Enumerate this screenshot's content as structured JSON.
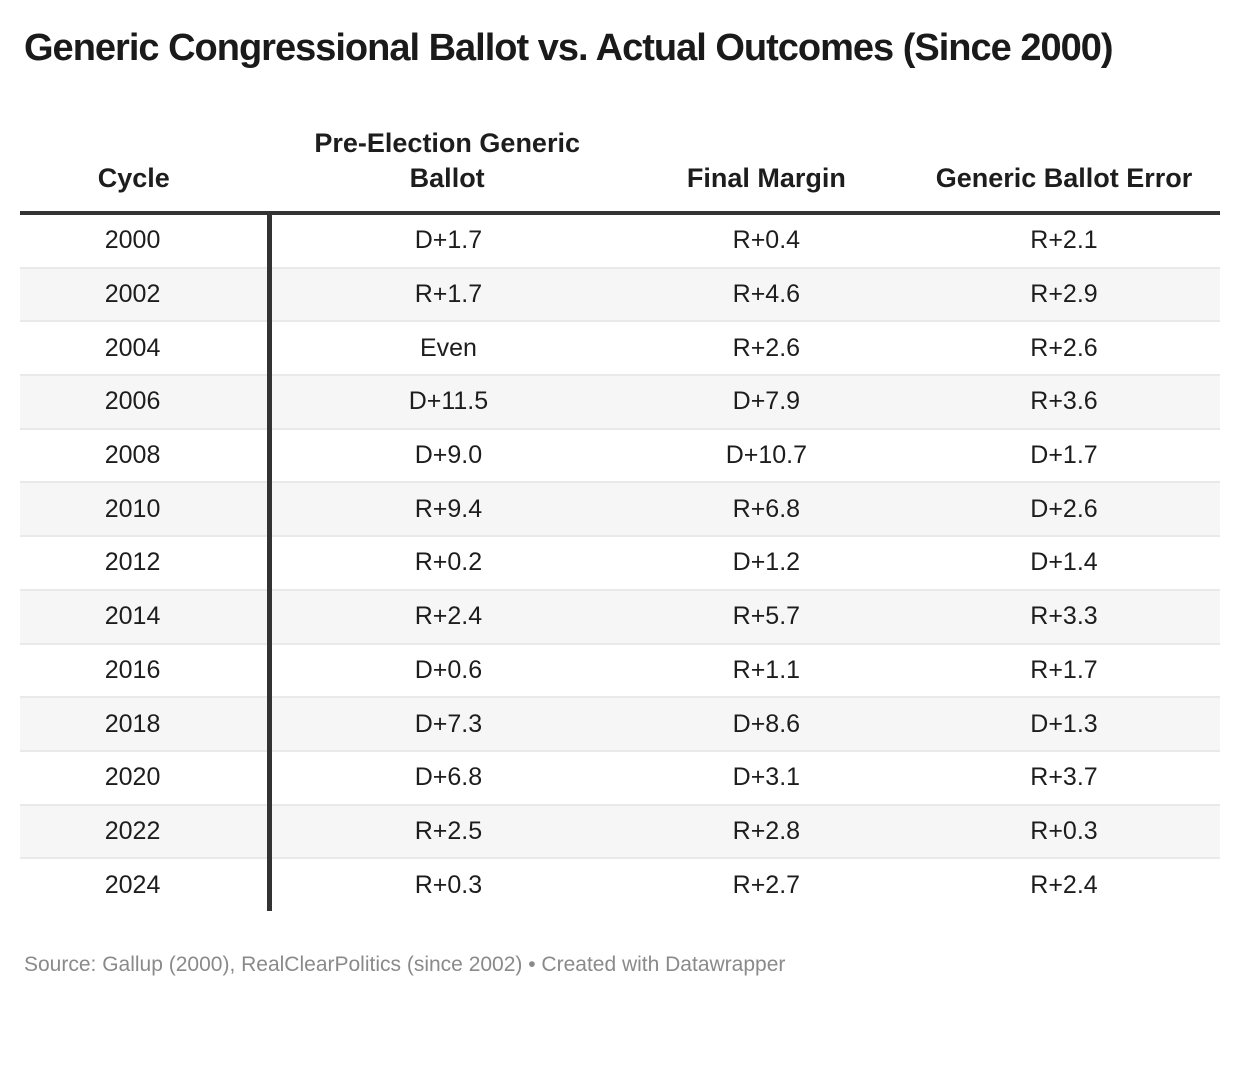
{
  "title": "Generic Congressional Ballot vs. Actual Outcomes (Since 2000)",
  "footer": {
    "text": "Source: Gallup (2000), RealClearPolitics (since 2002) • Created with Datawrapper"
  },
  "colors": {
    "rule_and_divider": "#333333",
    "row_alt_background": "#f6f6f6",
    "row_separator": "#e9e9e9",
    "cell_text": "#1d1d1d",
    "footer_text": "#8a8a8a"
  },
  "chart_data": {
    "type": "table",
    "title": "Generic Congressional Ballot vs. Actual Outcomes (Since 2000)",
    "columns": [
      "Cycle",
      "Pre-Election Generic Ballot",
      "Final Margin",
      "Generic Ballot Error"
    ],
    "rows": [
      [
        "2000",
        "D+1.7",
        "R+0.4",
        "R+2.1"
      ],
      [
        "2002",
        "R+1.7",
        "R+4.6",
        "R+2.9"
      ],
      [
        "2004",
        "Even",
        "R+2.6",
        "R+2.6"
      ],
      [
        "2006",
        "D+11.5",
        "D+7.9",
        "R+3.6"
      ],
      [
        "2008",
        "D+9.0",
        "D+10.7",
        "D+1.7"
      ],
      [
        "2010",
        "R+9.4",
        "R+6.8",
        "D+2.6"
      ],
      [
        "2012",
        "R+0.2",
        "D+1.2",
        "D+1.4"
      ],
      [
        "2014",
        "R+2.4",
        "R+5.7",
        "R+3.3"
      ],
      [
        "2016",
        "D+0.6",
        "R+1.1",
        "R+1.7"
      ],
      [
        "2018",
        "D+7.3",
        "D+8.6",
        "D+1.3"
      ],
      [
        "2020",
        "D+6.8",
        "D+3.1",
        "R+3.7"
      ],
      [
        "2022",
        "R+2.5",
        "R+2.8",
        "R+0.3"
      ],
      [
        "2024",
        "R+0.3",
        "R+2.7",
        "R+2.4"
      ]
    ],
    "source": "Source: Gallup (2000), RealClearPolitics (since 2002) • Created with Datawrapper",
    "layout": {
      "alternating_rows": true,
      "header_rule": "thick",
      "first_column_divider": "thick-vertical"
    }
  }
}
